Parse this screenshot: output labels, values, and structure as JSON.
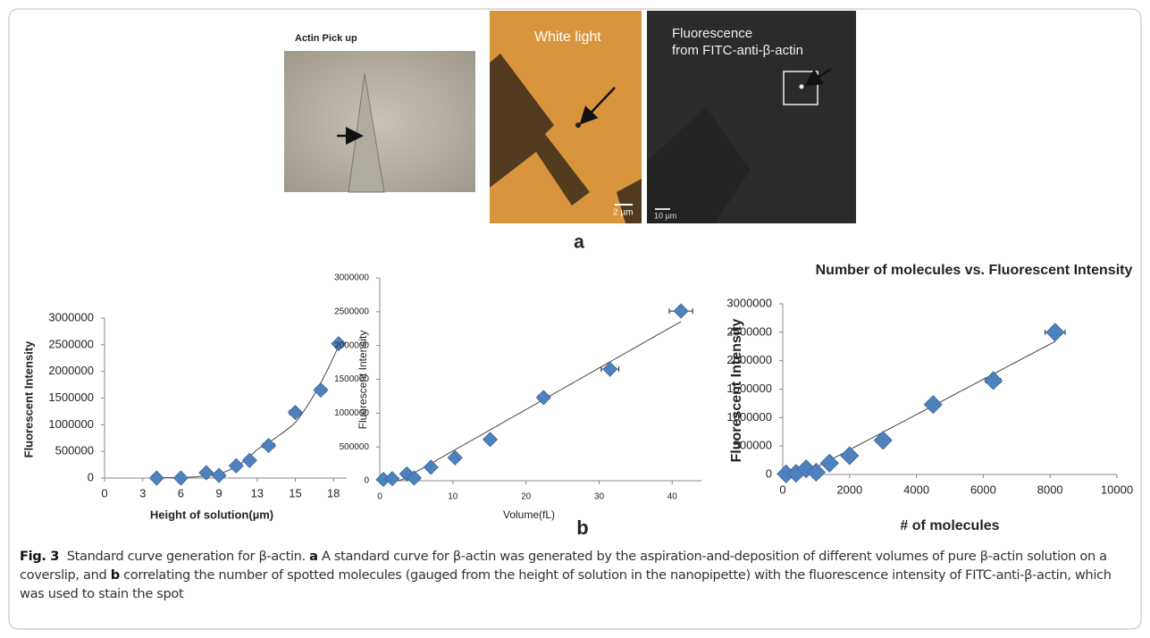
{
  "panel_a": {
    "pickup_label": "Actin Pick up",
    "white_light_label": "White light",
    "white_light_scale": "2 µm",
    "fluorescence_label_line1": "Fluorescence",
    "fluorescence_label_line2": "from FITC-anti-β-actin",
    "fluorescence_scale": "10 µm",
    "panel_label": "a"
  },
  "panel_b_label": "b",
  "chart_data": [
    {
      "type": "scatter",
      "x_label": "Height of solution(µm)",
      "y_label": "Fluorescent Intensity",
      "x": [
        4.1,
        6,
        8,
        9,
        10.8,
        12.2,
        13.6,
        15,
        17,
        18.4
      ],
      "values": [
        0,
        0,
        100000,
        50000,
        230000,
        330000,
        610000,
        1230000,
        1650000,
        2520000
      ],
      "x_errors": [
        0,
        0,
        0,
        0,
        0,
        0,
        0.3,
        0.3,
        0.4,
        0
      ],
      "color": "#4f81bd",
      "trendline_degree": 3,
      "xlim": [
        0,
        19
      ],
      "xticks": [
        0,
        3,
        6,
        9,
        13,
        15,
        18
      ],
      "ylim": [
        0,
        3000000
      ],
      "yticks": [
        0,
        500000,
        1000000,
        1500000,
        2000000,
        2500000,
        3000000
      ],
      "grid": false
    },
    {
      "type": "scatter",
      "x_label": "Volume(fL)",
      "y_label": "Fluorescent Intensity",
      "x": [
        0.5,
        1.7,
        3.7,
        4.7,
        7.0,
        10.3,
        15.1,
        22.4,
        31.5,
        41.2
      ],
      "values": [
        20000,
        30000,
        100000,
        40000,
        200000,
        340000,
        610000,
        1230000,
        1650000,
        2510000
      ],
      "x_errors": [
        0,
        0,
        0,
        0,
        0,
        0,
        0,
        0.7,
        1.2,
        1.6
      ],
      "color": "#4f81bd",
      "trendline_degree": 1,
      "xlim": [
        0,
        44
      ],
      "xticks": [
        0,
        10,
        20,
        30,
        40
      ],
      "ylim": [
        0,
        3000000
      ],
      "yticks": [
        0,
        500000,
        1000000,
        1500000,
        2000000,
        2500000,
        3000000
      ],
      "grid": false
    },
    {
      "type": "scatter",
      "title": "Number of molecules vs. Fluorescent Intensity",
      "x_label": "# of molecules",
      "y_label": "Fluorescent Intensity",
      "x": [
        100,
        400,
        700,
        1000,
        1400,
        2000,
        3000,
        4500,
        6300,
        8150
      ],
      "values": [
        10000,
        20000,
        100000,
        40000,
        200000,
        330000,
        600000,
        1230000,
        1650000,
        2500000
      ],
      "x_errors": [
        0,
        0,
        0,
        0,
        0,
        0,
        0,
        150,
        220,
        300
      ],
      "color": "#4f81bd",
      "trendline_degree": 1,
      "xlim": [
        0,
        10000
      ],
      "xticks": [
        0,
        2000,
        4000,
        6000,
        8000,
        10000
      ],
      "ylim": [
        0,
        3000000
      ],
      "yticks": [
        0,
        500000,
        1000000,
        1500000,
        2000000,
        2500000,
        3000000
      ],
      "grid": false
    }
  ],
  "caption": {
    "label": "Fig. 3",
    "title": "Standard curve generation for β-actin.",
    "part_a_label": "a",
    "part_a_text": "A standard curve for β-actin was generated by the aspiration-and-deposition of different volumes of pure β-actin solution on a coverslip, and",
    "part_b_label": "b",
    "part_b_text": "correlating the number of spotted molecules (gauged from the height of solution in the nanopipette) with the fluorescence intensity of FITC-anti-β-actin, which was used to stain the spot"
  }
}
